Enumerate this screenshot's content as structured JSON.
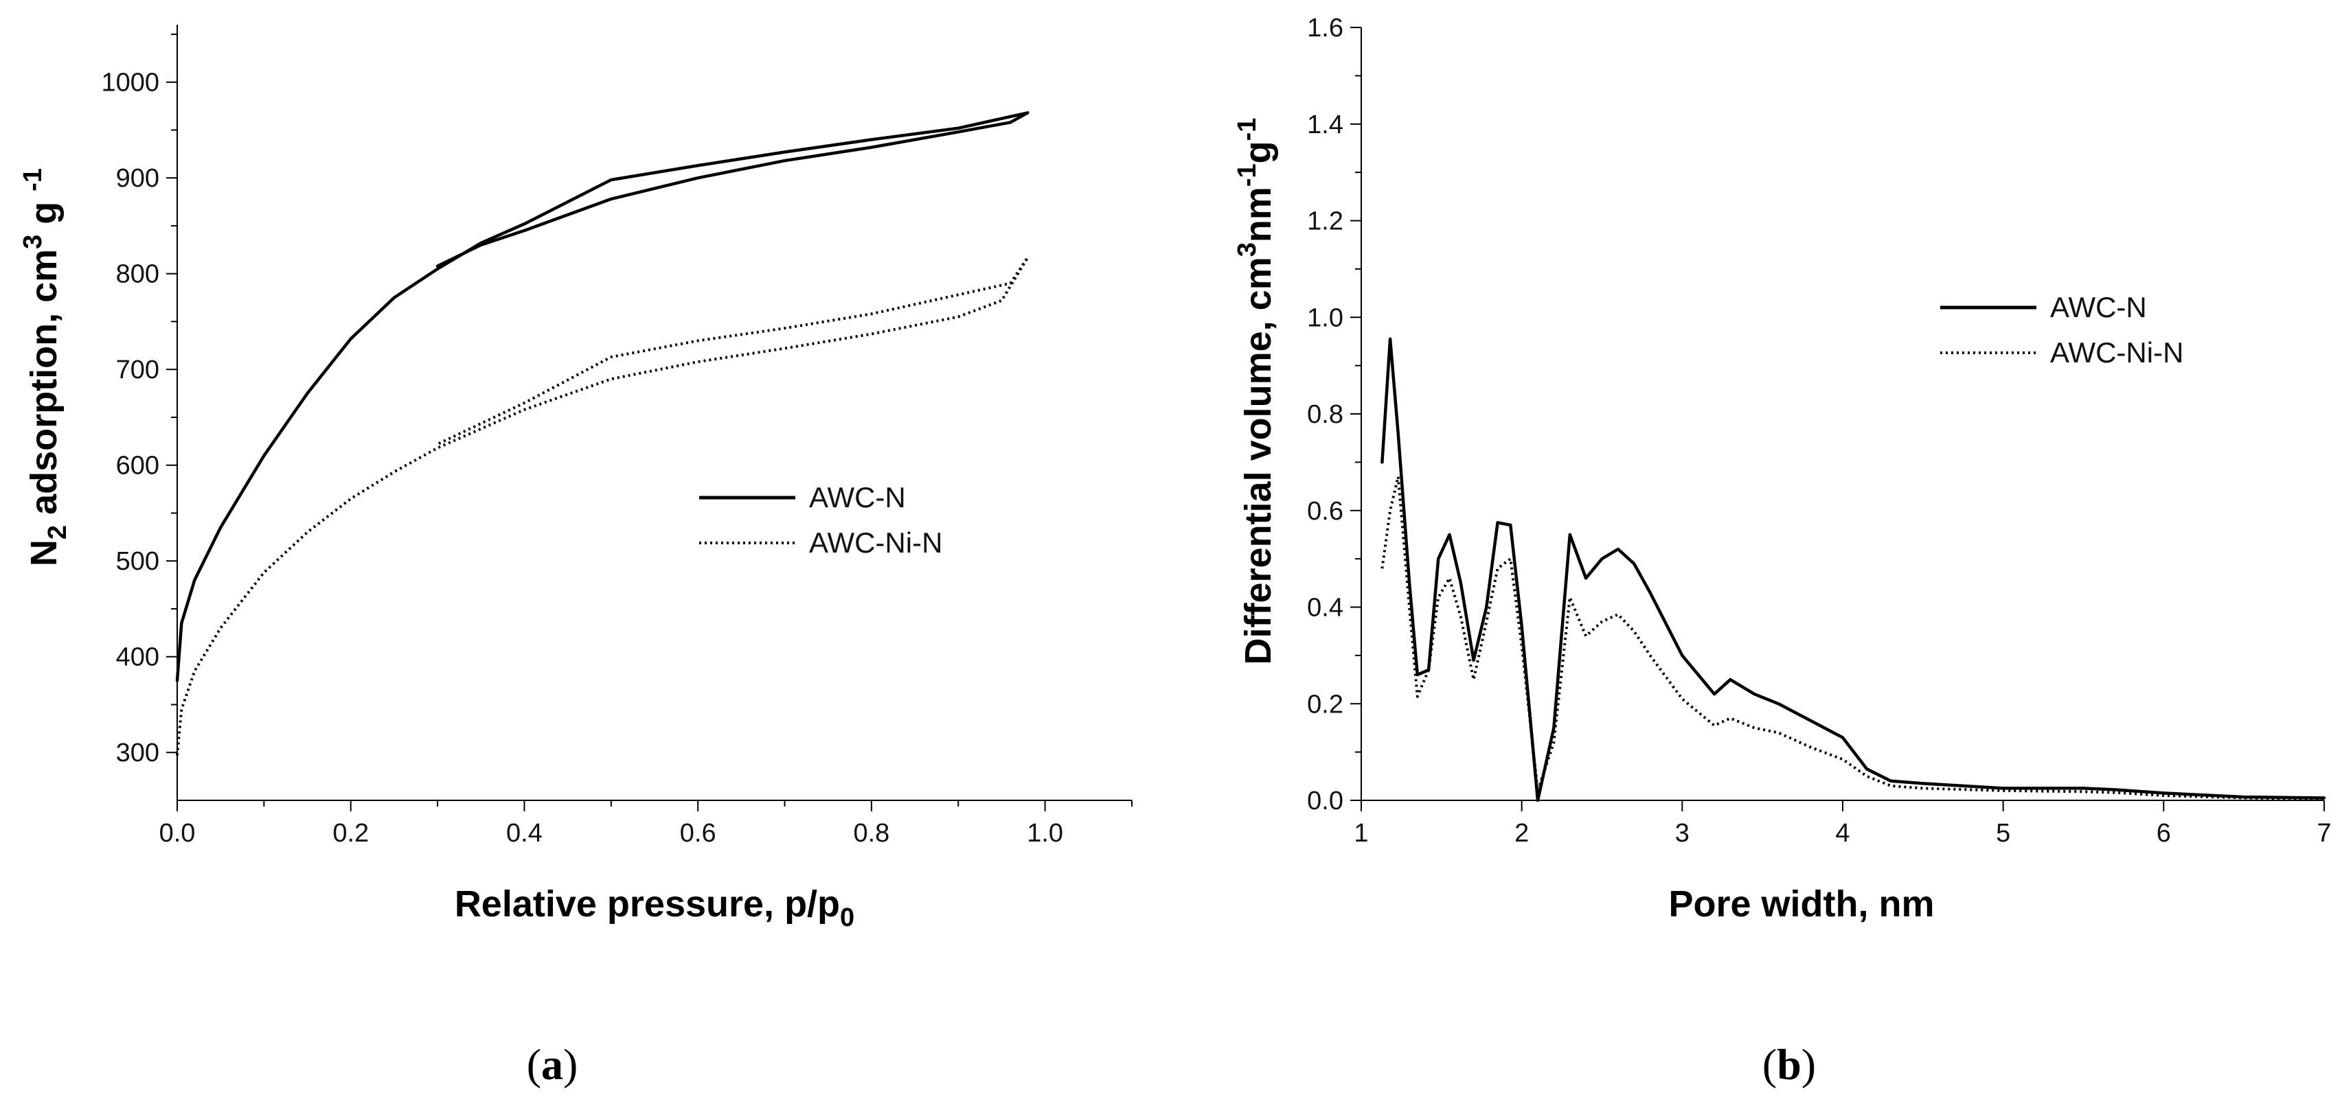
{
  "chart_data": [
    {
      "type": "line",
      "panel_label_parts": [
        "(",
        "a",
        ")"
      ],
      "xlabel_main": "Relative pressure, p/p",
      "xlabel_sub": "0",
      "ylabel_parts": [
        "N",
        "2",
        " adsorption, cm",
        "3",
        " g ",
        "-1"
      ],
      "xlim": [
        0,
        1.1
      ],
      "ylim": [
        250,
        1060
      ],
      "xticks": [
        0.0,
        0.2,
        0.4,
        0.6,
        0.8,
        1.0
      ],
      "xtick_labels": [
        "0.0",
        "0.2",
        "0.4",
        "0.6",
        "0.8",
        "1.0"
      ],
      "xminor": [
        0.1,
        0.3,
        0.5,
        0.7,
        0.9,
        1.1
      ],
      "yticks": [
        300,
        400,
        500,
        600,
        700,
        800,
        900,
        1000
      ],
      "ytick_labels": [
        "300",
        "400",
        "500",
        "600",
        "700",
        "800",
        "900",
        "1000"
      ],
      "yminor": [
        350,
        450,
        550,
        650,
        750,
        850,
        950,
        1050
      ],
      "legend": [
        "AWC-N",
        "AWC-Ni-N"
      ],
      "series": [
        {
          "name": "AWC-N",
          "style": "solid",
          "x": [
            0.0,
            0.005,
            0.02,
            0.05,
            0.1,
            0.15,
            0.2,
            0.25,
            0.3,
            0.35,
            0.4,
            0.5,
            0.6,
            0.7,
            0.8,
            0.9,
            0.95,
            0.98,
            0.96,
            0.9,
            0.8,
            0.7,
            0.6,
            0.5,
            0.4,
            0.35,
            0.3
          ],
          "y": [
            375,
            435,
            480,
            535,
            610,
            675,
            732,
            775,
            805,
            832,
            852,
            898,
            913,
            927,
            940,
            952,
            962,
            968,
            958,
            948,
            932,
            918,
            900,
            878,
            845,
            830,
            808
          ]
        },
        {
          "name": "AWC-Ni-N",
          "style": "dotted",
          "x": [
            0.0,
            0.005,
            0.02,
            0.05,
            0.1,
            0.15,
            0.2,
            0.25,
            0.3,
            0.4,
            0.5,
            0.6,
            0.7,
            0.8,
            0.9,
            0.95,
            0.98,
            0.96,
            0.9,
            0.8,
            0.7,
            0.6,
            0.5,
            0.4,
            0.3
          ],
          "y": [
            297,
            345,
            385,
            430,
            488,
            530,
            565,
            593,
            618,
            658,
            690,
            708,
            722,
            737,
            755,
            772,
            817,
            790,
            778,
            758,
            743,
            730,
            713,
            665,
            622
          ]
        }
      ]
    },
    {
      "type": "line",
      "panel_label_parts": [
        "(",
        "b",
        ")"
      ],
      "xlabel": "Pore width, nm",
      "ylabel_parts": [
        "Differential volume, cm",
        "3",
        "nm",
        "-1",
        "g",
        "-1"
      ],
      "xlim": [
        1,
        7
      ],
      "ylim": [
        0,
        1.6
      ],
      "xticks": [
        1,
        2,
        3,
        4,
        5,
        6,
        7
      ],
      "xtick_labels": [
        "1",
        "2",
        "3",
        "4",
        "5",
        "6",
        "7"
      ],
      "yticks": [
        0.0,
        0.2,
        0.4,
        0.6,
        0.8,
        1.0,
        1.2,
        1.4,
        1.6
      ],
      "ytick_labels": [
        "0.0",
        "0.2",
        "0.4",
        "0.6",
        "0.8",
        "1.0",
        "1.2",
        "1.4",
        "1.6"
      ],
      "yminor": [
        0.1,
        0.3,
        0.5,
        0.7,
        0.9,
        1.1,
        1.3,
        1.5
      ],
      "legend": [
        "AWC-N",
        "AWC-Ni-N"
      ],
      "series": [
        {
          "name": "AWC-N",
          "style": "solid",
          "x": [
            1.13,
            1.18,
            1.23,
            1.3,
            1.35,
            1.42,
            1.48,
            1.55,
            1.62,
            1.7,
            1.78,
            1.85,
            1.93,
            2.0,
            2.1,
            2.2,
            2.3,
            2.4,
            2.5,
            2.6,
            2.7,
            2.8,
            3.0,
            3.2,
            3.3,
            3.45,
            3.6,
            3.8,
            4.0,
            4.15,
            4.3,
            4.5,
            5.0,
            5.5,
            5.7,
            6.0,
            6.5,
            7.0
          ],
          "y": [
            0.7,
            0.955,
            0.76,
            0.45,
            0.26,
            0.27,
            0.5,
            0.55,
            0.45,
            0.29,
            0.4,
            0.575,
            0.57,
            0.36,
            0.0,
            0.15,
            0.55,
            0.46,
            0.5,
            0.52,
            0.49,
            0.43,
            0.3,
            0.22,
            0.25,
            0.22,
            0.2,
            0.165,
            0.13,
            0.065,
            0.04,
            0.035,
            0.025,
            0.025,
            0.022,
            0.015,
            0.007,
            0.005
          ]
        },
        {
          "name": "AWC-Ni-N",
          "style": "dotted",
          "x": [
            1.13,
            1.18,
            1.23,
            1.3,
            1.35,
            1.42,
            1.48,
            1.55,
            1.62,
            1.7,
            1.78,
            1.85,
            1.93,
            2.0,
            2.1,
            2.2,
            2.3,
            2.4,
            2.5,
            2.6,
            2.7,
            2.8,
            3.0,
            3.2,
            3.3,
            3.45,
            3.6,
            3.8,
            4.0,
            4.15,
            4.3,
            4.5,
            5.0,
            5.5,
            5.7,
            6.0,
            6.5,
            7.0
          ],
          "y": [
            0.48,
            0.6,
            0.67,
            0.4,
            0.215,
            0.27,
            0.42,
            0.46,
            0.38,
            0.25,
            0.37,
            0.48,
            0.5,
            0.32,
            0.02,
            0.12,
            0.42,
            0.34,
            0.37,
            0.385,
            0.35,
            0.3,
            0.21,
            0.155,
            0.17,
            0.15,
            0.14,
            0.11,
            0.085,
            0.05,
            0.03,
            0.025,
            0.02,
            0.018,
            0.016,
            0.01,
            0.005,
            0.003
          ]
        }
      ]
    }
  ]
}
